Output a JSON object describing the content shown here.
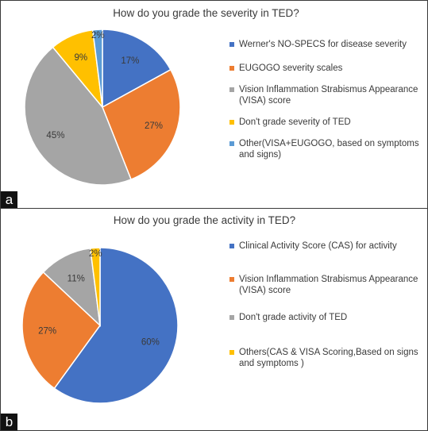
{
  "chart_data": [
    {
      "type": "pie",
      "panel_label": "a",
      "title": "How do you grade the severity in TED?",
      "slices": [
        {
          "label": "Werner's NO-SPECS for disease severity",
          "value": 17,
          "value_label": "17%",
          "color": "#4472c4"
        },
        {
          "label": "EUGOGO severity scales",
          "value": 27,
          "value_label": "27%",
          "color": "#ed7d31"
        },
        {
          "label": "Vision Inflammation Strabismus Appearance (VISA) score",
          "value": 45,
          "value_label": "45%",
          "color": "#a5a5a5"
        },
        {
          "label": "Don't grade severity of TED",
          "value": 9,
          "value_label": "9%",
          "color": "#ffc000"
        },
        {
          "label": "Other(VISA+EUGOGO, based on symptoms and signs)",
          "value": 2,
          "value_label": "2%",
          "color": "#5b9bd5"
        }
      ],
      "legend_position": "right"
    },
    {
      "type": "pie",
      "panel_label": "b",
      "title": "How do you grade the activity in TED?",
      "slices": [
        {
          "label": "Clinical Activity Score (CAS) for activity",
          "value": 60,
          "value_label": "60%",
          "color": "#4472c4"
        },
        {
          "label": "Vision Inflammation Strabismus Appearance (VISA) score",
          "value": 27,
          "value_label": "27%",
          "color": "#ed7d31"
        },
        {
          "label": "Don't grade activity of TED",
          "value": 11,
          "value_label": "11%",
          "color": "#a5a5a5"
        },
        {
          "label": "Others(CAS & VISA Scoring,Based on signs and symptoms )",
          "value": 2,
          "value_label": "2%",
          "color": "#ffc000"
        }
      ],
      "legend_position": "right"
    }
  ]
}
